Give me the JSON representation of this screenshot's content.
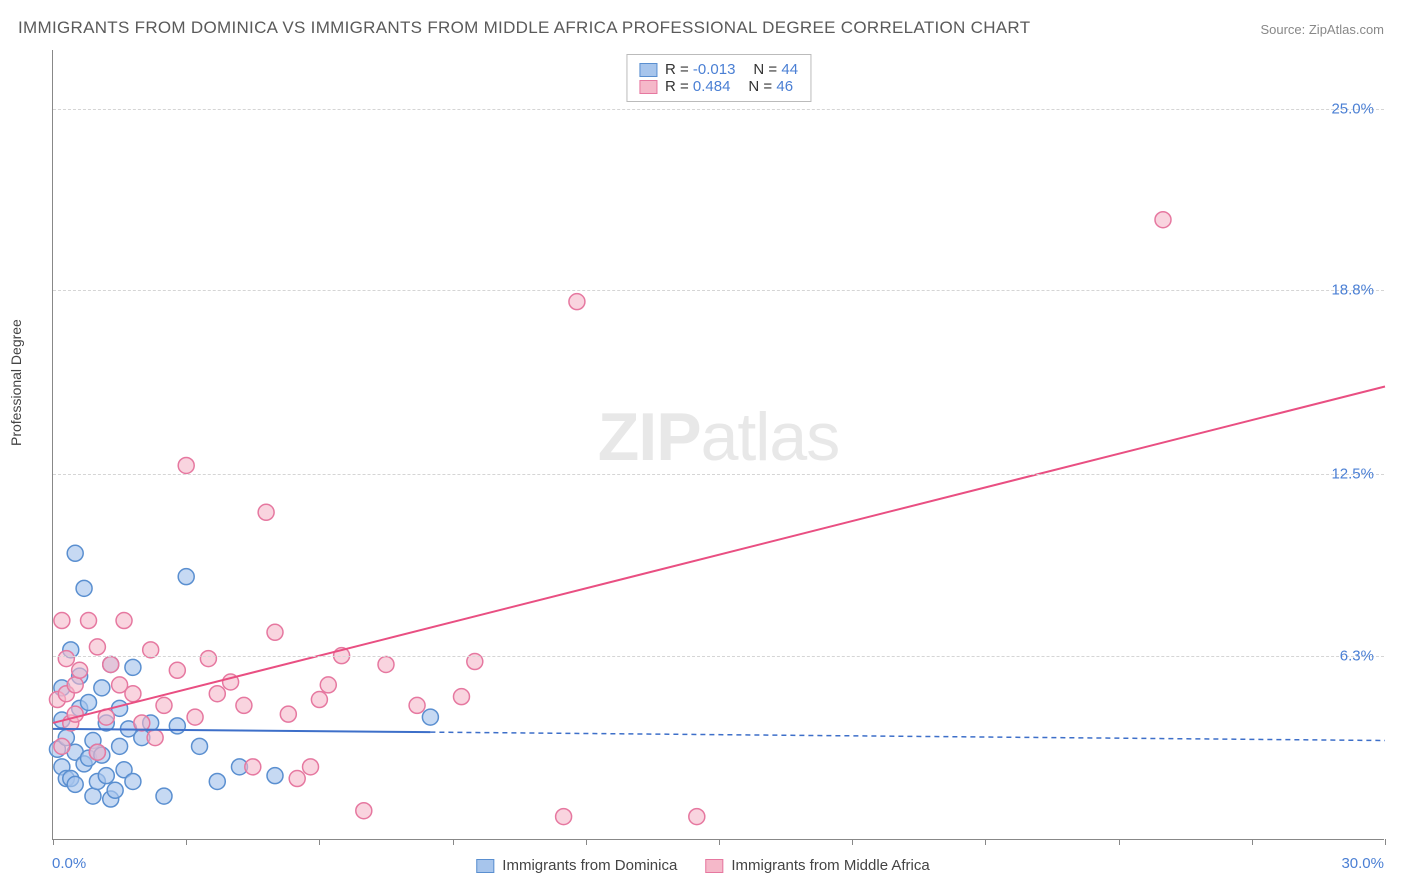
{
  "title": "IMMIGRANTS FROM DOMINICA VS IMMIGRANTS FROM MIDDLE AFRICA PROFESSIONAL DEGREE CORRELATION CHART",
  "source": "Source: ZipAtlas.com",
  "watermark_bold": "ZIP",
  "watermark_light": "atlas",
  "y_axis_label": "Professional Degree",
  "chart": {
    "type": "scatter",
    "background_color": "#ffffff",
    "grid_color": "#d5d5d5",
    "xlim": [
      0,
      30
    ],
    "ylim": [
      0,
      27
    ],
    "x_origin_label": "0.0%",
    "x_max_label": "30.0%",
    "x_ticks": [
      0,
      3,
      6,
      9,
      12,
      15,
      18,
      21,
      24,
      27,
      30
    ],
    "y_ticks": [
      {
        "v": 6.3,
        "label": "6.3%"
      },
      {
        "v": 12.5,
        "label": "12.5%"
      },
      {
        "v": 18.8,
        "label": "18.8%"
      },
      {
        "v": 25.0,
        "label": "25.0%"
      }
    ],
    "series": [
      {
        "name": "Immigrants from Dominica",
        "color_fill": "#a7c5ec",
        "color_stroke": "#5a8fd0",
        "marker_opacity": 0.65,
        "marker_radius": 8,
        "R": "-0.013",
        "N": "44",
        "trend": {
          "color": "#3d6fc9",
          "width": 2,
          "x0": 0,
          "y0": 3.8,
          "x1": 30,
          "y1": 3.4,
          "solid_until_x": 8.5
        },
        "points": [
          [
            0.1,
            3.1
          ],
          [
            0.2,
            5.2
          ],
          [
            0.2,
            4.1
          ],
          [
            0.2,
            2.5
          ],
          [
            0.3,
            2.1
          ],
          [
            0.3,
            3.5
          ],
          [
            0.4,
            6.5
          ],
          [
            0.4,
            2.1
          ],
          [
            0.5,
            9.8
          ],
          [
            0.5,
            3.0
          ],
          [
            0.5,
            1.9
          ],
          [
            0.6,
            5.6
          ],
          [
            0.6,
            4.5
          ],
          [
            0.7,
            2.6
          ],
          [
            0.7,
            8.6
          ],
          [
            0.8,
            2.8
          ],
          [
            0.8,
            4.7
          ],
          [
            0.9,
            3.4
          ],
          [
            0.9,
            1.5
          ],
          [
            1.0,
            3.0
          ],
          [
            1.0,
            2.0
          ],
          [
            1.1,
            5.2
          ],
          [
            1.1,
            2.9
          ],
          [
            1.2,
            4.0
          ],
          [
            1.2,
            2.2
          ],
          [
            1.3,
            6.0
          ],
          [
            1.3,
            1.4
          ],
          [
            1.4,
            1.7
          ],
          [
            1.5,
            4.5
          ],
          [
            1.5,
            3.2
          ],
          [
            1.6,
            2.4
          ],
          [
            1.7,
            3.8
          ],
          [
            1.8,
            5.9
          ],
          [
            1.8,
            2.0
          ],
          [
            2.0,
            3.5
          ],
          [
            2.2,
            4.0
          ],
          [
            2.5,
            1.5
          ],
          [
            2.8,
            3.9
          ],
          [
            3.0,
            9.0
          ],
          [
            3.3,
            3.2
          ],
          [
            3.7,
            2.0
          ],
          [
            4.2,
            2.5
          ],
          [
            5.0,
            2.2
          ],
          [
            8.5,
            4.2
          ]
        ]
      },
      {
        "name": "Immigrants from Middle Africa",
        "color_fill": "#f5b8c9",
        "color_stroke": "#e678a0",
        "marker_opacity": 0.6,
        "marker_radius": 8,
        "R": "0.484",
        "N": "46",
        "trend": {
          "color": "#e94f82",
          "width": 2,
          "x0": 0,
          "y0": 4.0,
          "x1": 30,
          "y1": 15.5,
          "solid_until_x": 30
        },
        "points": [
          [
            0.1,
            4.8
          ],
          [
            0.2,
            3.2
          ],
          [
            0.2,
            7.5
          ],
          [
            0.3,
            5.0
          ],
          [
            0.3,
            6.2
          ],
          [
            0.4,
            4.0
          ],
          [
            0.5,
            5.3
          ],
          [
            0.5,
            4.3
          ],
          [
            0.6,
            5.8
          ],
          [
            0.8,
            7.5
          ],
          [
            1.0,
            6.6
          ],
          [
            1.0,
            3.0
          ],
          [
            1.2,
            4.2
          ],
          [
            1.3,
            6.0
          ],
          [
            1.5,
            5.3
          ],
          [
            1.6,
            7.5
          ],
          [
            1.8,
            5.0
          ],
          [
            2.0,
            4.0
          ],
          [
            2.2,
            6.5
          ],
          [
            2.3,
            3.5
          ],
          [
            2.5,
            4.6
          ],
          [
            2.8,
            5.8
          ],
          [
            3.0,
            12.8
          ],
          [
            3.2,
            4.2
          ],
          [
            3.5,
            6.2
          ],
          [
            3.7,
            5.0
          ],
          [
            4.0,
            5.4
          ],
          [
            4.3,
            4.6
          ],
          [
            4.5,
            2.5
          ],
          [
            4.8,
            11.2
          ],
          [
            5.0,
            7.1
          ],
          [
            5.3,
            4.3
          ],
          [
            5.5,
            2.1
          ],
          [
            5.8,
            2.5
          ],
          [
            6.2,
            5.3
          ],
          [
            6.5,
            6.3
          ],
          [
            7.0,
            1.0
          ],
          [
            7.5,
            6.0
          ],
          [
            8.2,
            4.6
          ],
          [
            9.2,
            4.9
          ],
          [
            9.5,
            6.1
          ],
          [
            11.5,
            0.8
          ],
          [
            11.8,
            18.4
          ],
          [
            14.5,
            0.8
          ],
          [
            25.0,
            21.2
          ],
          [
            6.0,
            4.8
          ]
        ]
      }
    ]
  },
  "legend_bottom": [
    {
      "name": "Immigrants from Dominica",
      "fill": "#a7c5ec",
      "stroke": "#5a8fd0"
    },
    {
      "name": "Immigrants from Middle Africa",
      "fill": "#f5b8c9",
      "stroke": "#e678a0"
    }
  ]
}
